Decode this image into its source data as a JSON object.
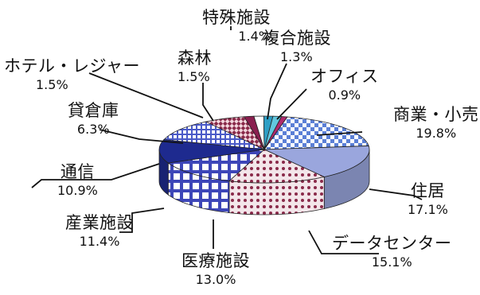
{
  "chart_data": {
    "type": "pie",
    "title": "",
    "slices": [
      {
        "label": "商業・小売",
        "value": 19.8,
        "display": "19.8%",
        "color": "#5b7fd6",
        "pattern": "checker"
      },
      {
        "label": "住居",
        "value": 17.1,
        "display": "17.1%",
        "color": "#9aa6dd",
        "pattern": "solid"
      },
      {
        "label": "データセンター",
        "value": 15.1,
        "display": "15.1%",
        "color": "#8a2a4a",
        "pattern": "dots"
      },
      {
        "label": "医療施設",
        "value": 13.0,
        "display": "13.0%",
        "color": "#3d46b8",
        "pattern": "grid"
      },
      {
        "label": "産業施設",
        "value": 11.4,
        "display": "11.4%",
        "color": "#1e2a8f",
        "pattern": "solid"
      },
      {
        "label": "通信",
        "value": 10.9,
        "display": "10.9%",
        "color": "#4a5ac8",
        "pattern": "smallgrid"
      },
      {
        "label": "貸倉庫",
        "value": 6.3,
        "display": "6.3%",
        "color": "#8a2a4a",
        "pattern": "diagcheck"
      },
      {
        "label": "ホテル・レジャー",
        "value": 1.5,
        "display": "1.5%",
        "color": "#8a1f4f",
        "pattern": "solid"
      },
      {
        "label": "森林",
        "value": 1.5,
        "display": "1.5%",
        "color": "#ffffff",
        "pattern": "solid"
      },
      {
        "label": "特殊施設",
        "value": 1.4,
        "display": "1.4%",
        "color": "#2e9ec4",
        "pattern": "solid"
      },
      {
        "label": "複合施設",
        "value": 1.3,
        "display": "1.3%",
        "color": "#62c7df",
        "pattern": "solid"
      },
      {
        "label": "オフィス",
        "value": 0.9,
        "display": "0.9%",
        "color": "#b02a6e",
        "pattern": "solid"
      }
    ]
  }
}
